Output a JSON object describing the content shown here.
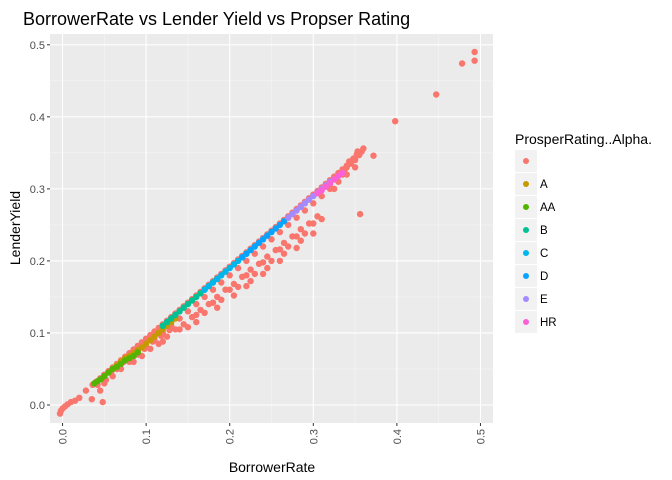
{
  "chart_data": {
    "type": "scatter",
    "title": "BorrowerRate vs Lender Yield vs Propser Rating",
    "xlabel": "BorrowerRate",
    "ylabel": "LenderYield",
    "xlim": [
      -0.015,
      0.515
    ],
    "ylim": [
      -0.025,
      0.515
    ],
    "x_ticks": [
      0.0,
      0.1,
      0.2,
      0.3,
      0.4,
      0.5
    ],
    "x_tick_labels": [
      "0.0",
      "0.1",
      "0.2",
      "0.3",
      "0.4",
      "0.5"
    ],
    "y_ticks": [
      0.0,
      0.1,
      0.2,
      0.3,
      0.4,
      0.5
    ],
    "y_tick_labels": [
      "0.0",
      "0.1",
      "0.2",
      "0.3",
      "0.4",
      "0.5"
    ],
    "grid": true,
    "background": "#ebebeb",
    "legend_position": "right",
    "legend_title": "ProsperRating..Alpha.",
    "series": [
      {
        "name": "",
        "color": "#f8766d",
        "points": [
          [
            -0.003,
            -0.012
          ],
          [
            -0.002,
            -0.008
          ],
          [
            0.0,
            -0.005
          ],
          [
            0.003,
            -0.002
          ],
          [
            0.006,
            0.001
          ],
          [
            0.01,
            0.004
          ],
          [
            0.015,
            0.006
          ],
          [
            0.02,
            0.01
          ],
          [
            0.028,
            0.02
          ],
          [
            0.036,
            0.028
          ],
          [
            0.04,
            0.032
          ],
          [
            0.045,
            0.037
          ],
          [
            0.05,
            0.042
          ],
          [
            0.055,
            0.047
          ],
          [
            0.06,
            0.052
          ],
          [
            0.065,
            0.057
          ],
          [
            0.07,
            0.062
          ],
          [
            0.075,
            0.067
          ],
          [
            0.08,
            0.072
          ],
          [
            0.085,
            0.077
          ],
          [
            0.09,
            0.082
          ],
          [
            0.095,
            0.087
          ],
          [
            0.1,
            0.092
          ],
          [
            0.105,
            0.097
          ],
          [
            0.11,
            0.102
          ],
          [
            0.115,
            0.107
          ],
          [
            0.12,
            0.112
          ],
          [
            0.125,
            0.117
          ],
          [
            0.13,
            0.122
          ],
          [
            0.135,
            0.127
          ],
          [
            0.14,
            0.132
          ],
          [
            0.145,
            0.137
          ],
          [
            0.15,
            0.142
          ],
          [
            0.155,
            0.147
          ],
          [
            0.16,
            0.152
          ],
          [
            0.165,
            0.157
          ],
          [
            0.17,
            0.162
          ],
          [
            0.175,
            0.167
          ],
          [
            0.18,
            0.172
          ],
          [
            0.185,
            0.177
          ],
          [
            0.19,
            0.182
          ],
          [
            0.195,
            0.187
          ],
          [
            0.2,
            0.192
          ],
          [
            0.205,
            0.197
          ],
          [
            0.21,
            0.202
          ],
          [
            0.215,
            0.207
          ],
          [
            0.22,
            0.212
          ],
          [
            0.225,
            0.217
          ],
          [
            0.23,
            0.222
          ],
          [
            0.235,
            0.227
          ],
          [
            0.24,
            0.232
          ],
          [
            0.245,
            0.237
          ],
          [
            0.25,
            0.242
          ],
          [
            0.255,
            0.247
          ],
          [
            0.26,
            0.252
          ],
          [
            0.265,
            0.257
          ],
          [
            0.27,
            0.262
          ],
          [
            0.275,
            0.267
          ],
          [
            0.28,
            0.272
          ],
          [
            0.285,
            0.277
          ],
          [
            0.29,
            0.282
          ],
          [
            0.295,
            0.287
          ],
          [
            0.3,
            0.292
          ],
          [
            0.305,
            0.297
          ],
          [
            0.31,
            0.302
          ],
          [
            0.315,
            0.307
          ],
          [
            0.32,
            0.312
          ],
          [
            0.325,
            0.317
          ],
          [
            0.33,
            0.322
          ],
          [
            0.335,
            0.327
          ],
          [
            0.34,
            0.332
          ],
          [
            0.345,
            0.337
          ],
          [
            0.35,
            0.342
          ],
          [
            0.355,
            0.347
          ],
          [
            0.358,
            0.352
          ],
          [
            0.36,
            0.356
          ],
          [
            0.05,
            0.03
          ],
          [
            0.06,
            0.04
          ],
          [
            0.07,
            0.05
          ],
          [
            0.08,
            0.06
          ],
          [
            0.09,
            0.07
          ],
          [
            0.1,
            0.08
          ],
          [
            0.11,
            0.09
          ],
          [
            0.12,
            0.1
          ],
          [
            0.13,
            0.11
          ],
          [
            0.14,
            0.12
          ],
          [
            0.15,
            0.13
          ],
          [
            0.16,
            0.14
          ],
          [
            0.17,
            0.15
          ],
          [
            0.18,
            0.16
          ],
          [
            0.19,
            0.17
          ],
          [
            0.2,
            0.18
          ],
          [
            0.21,
            0.19
          ],
          [
            0.22,
            0.2
          ],
          [
            0.23,
            0.21
          ],
          [
            0.24,
            0.22
          ],
          [
            0.25,
            0.23
          ],
          [
            0.26,
            0.24
          ],
          [
            0.27,
            0.25
          ],
          [
            0.28,
            0.26
          ],
          [
            0.29,
            0.27
          ],
          [
            0.3,
            0.28
          ],
          [
            0.31,
            0.29
          ],
          [
            0.32,
            0.3
          ],
          [
            0.33,
            0.31
          ],
          [
            0.34,
            0.32
          ],
          [
            0.35,
            0.33
          ],
          [
            0.085,
            0.06
          ],
          [
            0.095,
            0.068
          ],
          [
            0.105,
            0.078
          ],
          [
            0.115,
            0.085
          ],
          [
            0.125,
            0.095
          ],
          [
            0.135,
            0.105
          ],
          [
            0.145,
            0.112
          ],
          [
            0.155,
            0.122
          ],
          [
            0.165,
            0.132
          ],
          [
            0.175,
            0.14
          ],
          [
            0.185,
            0.15
          ],
          [
            0.195,
            0.16
          ],
          [
            0.205,
            0.168
          ],
          [
            0.215,
            0.178
          ],
          [
            0.225,
            0.188
          ],
          [
            0.235,
            0.196
          ],
          [
            0.245,
            0.206
          ],
          [
            0.255,
            0.215
          ],
          [
            0.265,
            0.225
          ],
          [
            0.275,
            0.234
          ],
          [
            0.285,
            0.244
          ],
          [
            0.295,
            0.252
          ],
          [
            0.305,
            0.262
          ],
          [
            0.12,
            0.088
          ],
          [
            0.14,
            0.105
          ],
          [
            0.16,
            0.125
          ],
          [
            0.18,
            0.142
          ],
          [
            0.2,
            0.16
          ],
          [
            0.22,
            0.18
          ],
          [
            0.24,
            0.198
          ],
          [
            0.26,
            0.216
          ],
          [
            0.28,
            0.234
          ],
          [
            0.3,
            0.252
          ],
          [
            0.15,
            0.108
          ],
          [
            0.17,
            0.128
          ],
          [
            0.19,
            0.146
          ],
          [
            0.21,
            0.164
          ],
          [
            0.23,
            0.182
          ],
          [
            0.25,
            0.2
          ],
          [
            0.27,
            0.22
          ],
          [
            0.29,
            0.238
          ],
          [
            0.31,
            0.258
          ],
          [
            0.185,
            0.135
          ],
          [
            0.205,
            0.152
          ],
          [
            0.225,
            0.172
          ],
          [
            0.245,
            0.19
          ],
          [
            0.265,
            0.21
          ],
          [
            0.285,
            0.228
          ],
          [
            0.24,
            0.182
          ],
          [
            0.26,
            0.2
          ],
          [
            0.28,
            0.218
          ],
          [
            0.3,
            0.238
          ],
          [
            0.22,
            0.165
          ],
          [
            0.16,
            0.115
          ],
          [
            0.045,
            0.02
          ],
          [
            0.048,
            0.004
          ],
          [
            0.035,
            0.008
          ],
          [
            0.042,
            0.028
          ],
          [
            0.052,
            0.035
          ],
          [
            0.058,
            0.045
          ],
          [
            0.065,
            0.05
          ],
          [
            0.073,
            0.06
          ],
          [
            0.078,
            0.065
          ],
          [
            0.088,
            0.07
          ],
          [
            0.098,
            0.078
          ],
          [
            0.108,
            0.088
          ],
          [
            0.118,
            0.096
          ],
          [
            0.128,
            0.104
          ],
          [
            0.325,
            0.3
          ],
          [
            0.335,
            0.32
          ],
          [
            0.34,
            0.33
          ],
          [
            0.345,
            0.335
          ],
          [
            0.35,
            0.34
          ],
          [
            0.356,
            0.35
          ],
          [
            0.352,
            0.348
          ],
          [
            0.348,
            0.342
          ],
          [
            0.356,
            0.265
          ],
          [
            0.372,
            0.346
          ],
          [
            0.32,
            0.304
          ],
          [
            0.338,
            0.328
          ],
          [
            0.343,
            0.338
          ],
          [
            0.353,
            0.352
          ],
          [
            0.398,
            0.394
          ],
          [
            0.447,
            0.431
          ],
          [
            0.478,
            0.474
          ],
          [
            0.493,
            0.478
          ],
          [
            0.493,
            0.49
          ]
        ]
      },
      {
        "name": "A",
        "color": "#c49a00",
        "points": [
          [
            0.06,
            0.05
          ],
          [
            0.065,
            0.055
          ],
          [
            0.07,
            0.06
          ],
          [
            0.075,
            0.065
          ],
          [
            0.08,
            0.068
          ],
          [
            0.085,
            0.072
          ],
          [
            0.09,
            0.076
          ],
          [
            0.095,
            0.08
          ],
          [
            0.1,
            0.085
          ],
          [
            0.105,
            0.09
          ],
          [
            0.11,
            0.095
          ],
          [
            0.115,
            0.1
          ],
          [
            0.12,
            0.105
          ],
          [
            0.125,
            0.11
          ],
          [
            0.13,
            0.115
          ],
          [
            0.135,
            0.12
          ]
        ]
      },
      {
        "name": "AA",
        "color": "#53b400",
        "points": [
          [
            0.038,
            0.03
          ],
          [
            0.042,
            0.033
          ],
          [
            0.046,
            0.036
          ],
          [
            0.05,
            0.04
          ],
          [
            0.055,
            0.045
          ],
          [
            0.06,
            0.05
          ],
          [
            0.065,
            0.053
          ],
          [
            0.07,
            0.057
          ],
          [
            0.075,
            0.062
          ],
          [
            0.08,
            0.065
          ],
          [
            0.085,
            0.068
          ],
          [
            0.09,
            0.073
          ]
        ]
      },
      {
        "name": "B",
        "color": "#00c094",
        "points": [
          [
            0.12,
            0.11
          ],
          [
            0.125,
            0.115
          ],
          [
            0.13,
            0.12
          ],
          [
            0.135,
            0.125
          ],
          [
            0.14,
            0.13
          ],
          [
            0.145,
            0.135
          ],
          [
            0.15,
            0.14
          ],
          [
            0.155,
            0.145
          ],
          [
            0.16,
            0.15
          ],
          [
            0.165,
            0.155
          ],
          [
            0.17,
            0.16
          ],
          [
            0.175,
            0.165
          ],
          [
            0.18,
            0.17
          ],
          [
            0.185,
            0.175
          ]
        ]
      },
      {
        "name": "C",
        "color": "#00b6eb",
        "points": [
          [
            0.17,
            0.16
          ],
          [
            0.175,
            0.165
          ],
          [
            0.18,
            0.17
          ],
          [
            0.185,
            0.175
          ],
          [
            0.19,
            0.18
          ],
          [
            0.195,
            0.185
          ],
          [
            0.2,
            0.19
          ],
          [
            0.205,
            0.195
          ],
          [
            0.21,
            0.2
          ],
          [
            0.215,
            0.205
          ],
          [
            0.22,
            0.21
          ]
        ]
      },
      {
        "name": "D",
        "color": "#06a4ff",
        "points": [
          [
            0.215,
            0.205
          ],
          [
            0.22,
            0.21
          ],
          [
            0.225,
            0.215
          ],
          [
            0.23,
            0.22
          ],
          [
            0.235,
            0.225
          ],
          [
            0.24,
            0.23
          ],
          [
            0.245,
            0.235
          ],
          [
            0.25,
            0.24
          ],
          [
            0.255,
            0.245
          ],
          [
            0.26,
            0.25
          ],
          [
            0.265,
            0.255
          ],
          [
            0.27,
            0.26
          ]
        ]
      },
      {
        "name": "E",
        "color": "#a58aff",
        "points": [
          [
            0.27,
            0.26
          ],
          [
            0.275,
            0.265
          ],
          [
            0.28,
            0.27
          ],
          [
            0.285,
            0.275
          ],
          [
            0.29,
            0.28
          ],
          [
            0.295,
            0.285
          ],
          [
            0.3,
            0.29
          ],
          [
            0.305,
            0.295
          ],
          [
            0.31,
            0.3
          ],
          [
            0.315,
            0.305
          ],
          [
            0.32,
            0.31
          ]
        ]
      },
      {
        "name": "HR",
        "color": "#fb61d7",
        "points": [
          [
            0.305,
            0.294
          ],
          [
            0.31,
            0.298
          ],
          [
            0.315,
            0.303
          ],
          [
            0.32,
            0.308
          ],
          [
            0.325,
            0.313
          ],
          [
            0.33,
            0.318
          ],
          [
            0.335,
            0.322
          ]
        ]
      }
    ]
  }
}
